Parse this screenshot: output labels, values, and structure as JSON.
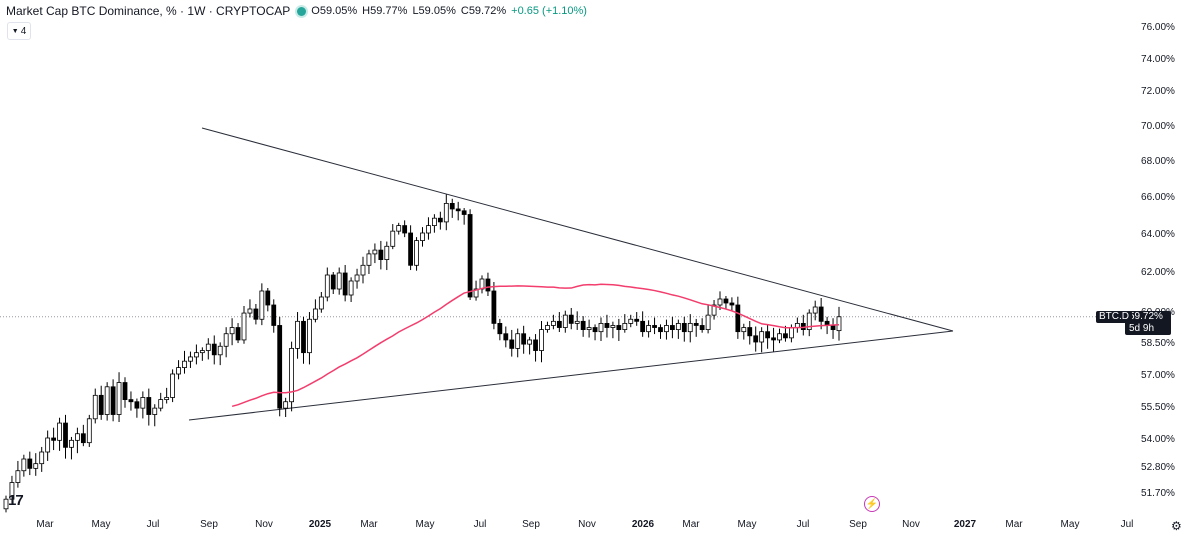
{
  "header": {
    "title": "Market Cap BTC Dominance, % · 1W · CRYPTOCAP",
    "open": "O59.05%",
    "high": "H59.77%",
    "low": "L59.05%",
    "close": "C59.72%",
    "change": "+0.65 (+1.10%)",
    "status_color": "#26a69a",
    "indicator_count": "4"
  },
  "price_tag": {
    "symbol": "BTC.D",
    "value": "59.72%",
    "countdown": "5d 9h"
  },
  "logo_icon": "tradingview-logo-icon",
  "flash_icon": "lightning-icon",
  "settings_icon": "gear-icon",
  "chart_data": {
    "type": "candlestick",
    "x_axis_labels": [
      "Mar",
      "May",
      "Jul",
      "Sep",
      "Nov",
      "2025",
      "Mar",
      "May",
      "Jul",
      "Sep",
      "Nov",
      "2026",
      "Mar",
      "May",
      "Jul",
      "Sep",
      "Nov",
      "2027",
      "Mar",
      "May",
      "Jul"
    ],
    "x_axis_bold": [
      false,
      false,
      false,
      false,
      false,
      true,
      false,
      false,
      false,
      false,
      false,
      true,
      false,
      false,
      false,
      false,
      false,
      true,
      false,
      false,
      false
    ],
    "y_axis_labels": [
      "76.00%",
      "74.00%",
      "72.00%",
      "70.00%",
      "68.00%",
      "66.00%",
      "64.00%",
      "62.00%",
      "60.00%",
      "58.50%",
      "57.00%",
      "55.50%",
      "54.00%",
      "52.80%",
      "51.70%"
    ],
    "y_tick_values": [
      76,
      74,
      72,
      70,
      68,
      66,
      64,
      62,
      60,
      58.5,
      57,
      55.5,
      54,
      52.8,
      51.7
    ],
    "current_price": 59.72,
    "colors": {
      "up": "#ffffff",
      "down": "#000000",
      "outline": "#000000",
      "ma": "#f23d6d",
      "trendline": "#2a2e39",
      "price_line": "#9598a1"
    },
    "weeks_visible": 174,
    "first_week": "2024-W06",
    "closes": [
      51.4,
      52.1,
      52.6,
      53.1,
      52.7,
      52.9,
      53.4,
      54.0,
      53.9,
      54.7,
      53.6,
      53.9,
      54.2,
      53.8,
      54.9,
      56.0,
      55.1,
      56.4,
      55.1,
      56.6,
      55.8,
      55.7,
      55.4,
      55.9,
      55.1,
      55.4,
      55.8,
      55.9,
      57.0,
      57.3,
      57.6,
      57.8,
      58.0,
      58.1,
      58.4,
      57.9,
      58.3,
      58.9,
      59.2,
      58.6,
      59.9,
      60.1,
      59.6,
      61.0,
      60.3,
      59.3,
      55.4,
      55.7,
      58.2,
      59.5,
      58.0,
      59.6,
      60.1,
      60.7,
      61.8,
      61.1,
      61.9,
      60.8,
      61.5,
      61.8,
      62.3,
      62.9,
      63.1,
      62.6,
      63.3,
      64.1,
      64.4,
      64.0,
      62.3,
      63.6,
      64.0,
      64.4,
      64.8,
      64.6,
      65.6,
      65.3,
      65.2,
      65.0,
      60.7,
      61.1,
      61.6,
      61.0,
      59.4,
      58.9,
      58.6,
      58.2,
      58.9,
      58.4,
      58.6,
      58.1,
      59.1,
      59.3,
      59.5,
      59.2,
      59.8,
      59.4,
      59.5,
      59.1,
      59.2,
      59.0,
      59.4,
      59.2,
      59.3,
      59.1,
      59.4,
      59.6,
      59.5,
      59.0,
      59.3,
      59.2,
      59.0,
      59.3,
      59.1,
      59.4,
      59.0,
      59.4,
      59.3,
      59.1,
      59.8,
      60.3,
      60.6,
      60.4,
      60.3,
      59.0,
      59.2,
      58.8,
      58.5,
      59.0,
      58.7,
      58.6,
      58.9,
      58.7,
      59.2,
      59.4,
      59.1,
      59.9,
      60.2,
      59.5,
      59.3,
      59.1,
      59.72
    ],
    "sma_window": 50,
    "trendlines": [
      {
        "name": "upper",
        "from": [
          "2024-09",
          69.9
        ],
        "to": [
          "2026-11",
          58.8
        ]
      },
      {
        "name": "lower",
        "from": [
          "2024-09",
          55.0
        ],
        "to": [
          "2026-11",
          58.8
        ]
      }
    ]
  }
}
